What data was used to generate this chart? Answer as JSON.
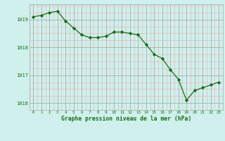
{
  "x": [
    0,
    1,
    2,
    3,
    4,
    5,
    6,
    7,
    8,
    9,
    10,
    11,
    12,
    13,
    14,
    15,
    16,
    17,
    18,
    19,
    20,
    21,
    22,
    23
  ],
  "y": [
    1019.1,
    1019.15,
    1019.25,
    1019.3,
    1018.95,
    1018.7,
    1018.45,
    1018.35,
    1018.35,
    1018.4,
    1018.55,
    1018.55,
    1018.5,
    1018.45,
    1018.1,
    1017.75,
    1017.6,
    1017.2,
    1016.85,
    1016.1,
    1016.45,
    1016.55,
    1016.65,
    1016.75
  ],
  "line_color": "#1a6b1a",
  "marker_color": "#1a6b1a",
  "bg_color": "#cff0ec",
  "grid_color_major": "#aaaaaa",
  "grid_color_minor": "#e8b8b8",
  "xlabel": "Graphe pression niveau de la mer (hPa)",
  "xlabel_color": "#1a6b1a",
  "tick_label_color": "#1a6b1a",
  "ylim": [
    1015.75,
    1019.55
  ],
  "yticks": [
    1016,
    1017,
    1018,
    1019
  ],
  "xticks": [
    0,
    1,
    2,
    3,
    4,
    5,
    6,
    7,
    8,
    9,
    10,
    11,
    12,
    13,
    14,
    15,
    16,
    17,
    18,
    19,
    20,
    21,
    22,
    23
  ]
}
